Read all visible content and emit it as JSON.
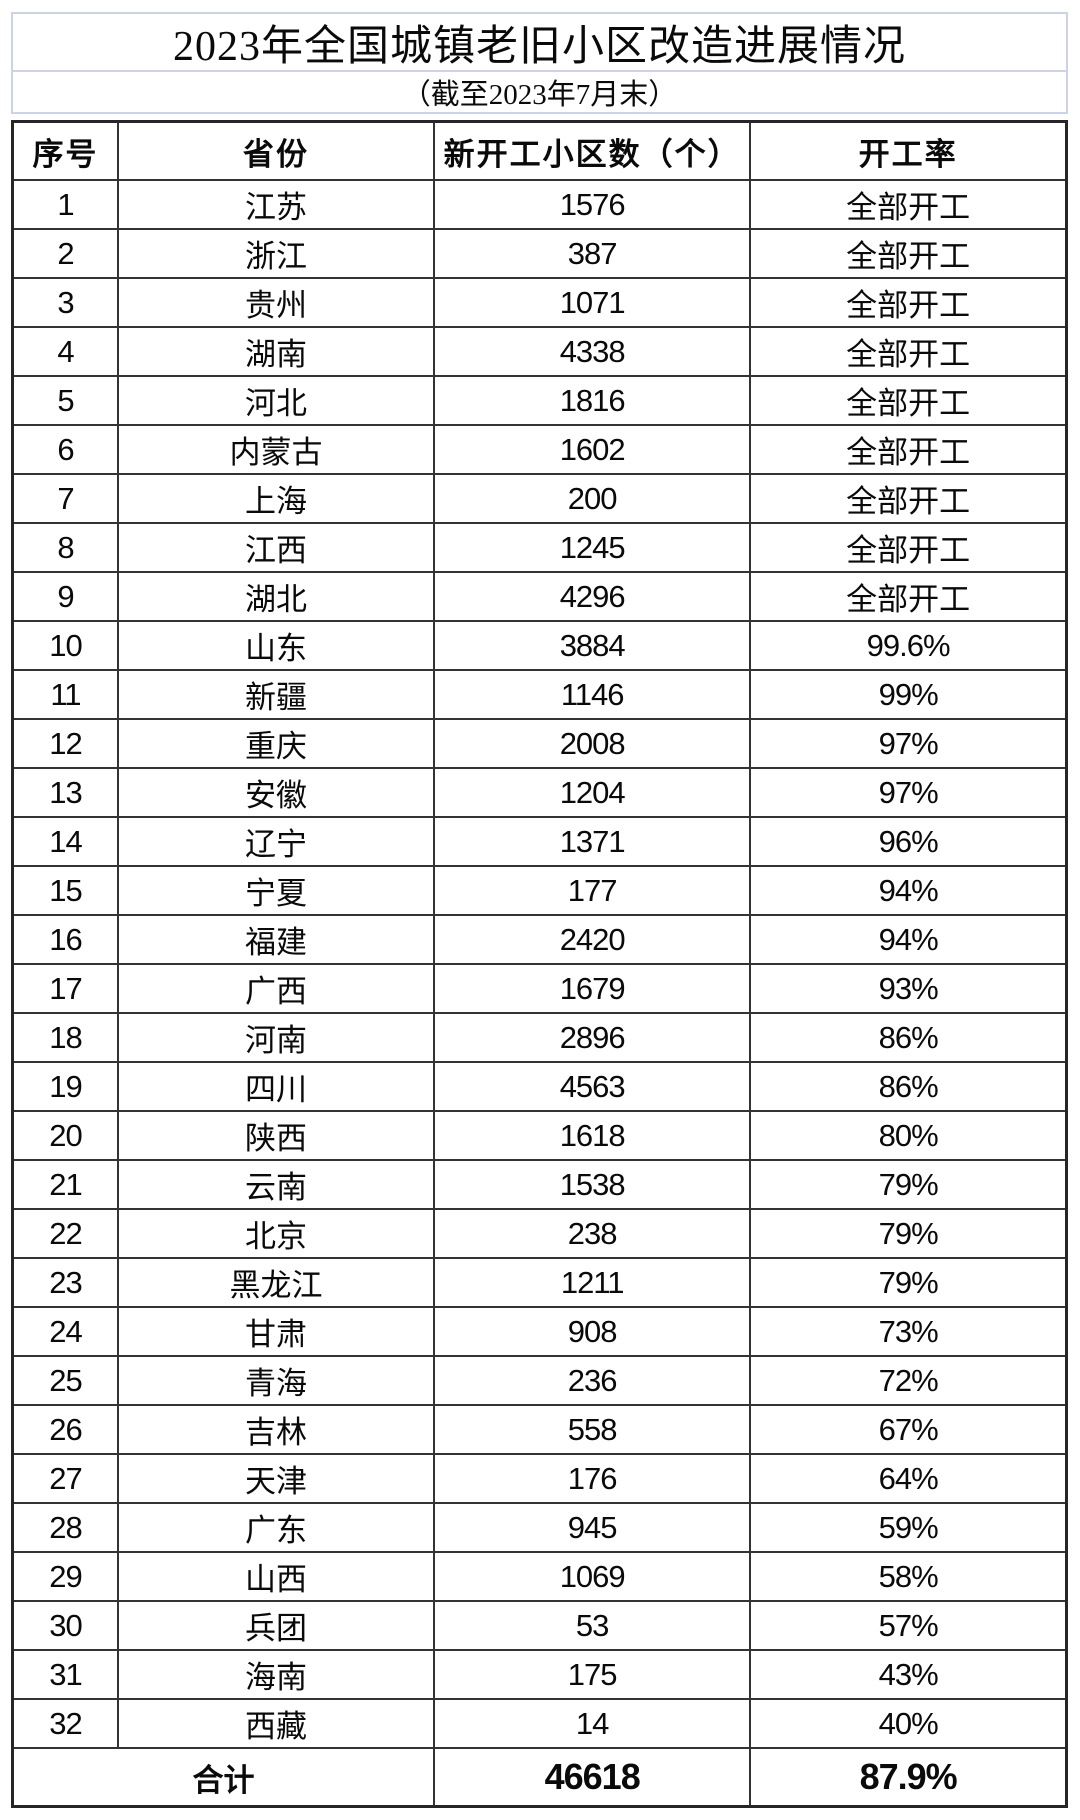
{
  "page": {
    "title": "2023年全国城镇老旧小区改造进展情况",
    "subtitle": "（截至2023年7月末）"
  },
  "table": {
    "headers": [
      "序号",
      "省份",
      "新开工小区数（个）",
      "开工率"
    ],
    "rows": [
      [
        "1",
        "江苏",
        "1576",
        "全部开工"
      ],
      [
        "2",
        "浙江",
        "387",
        "全部开工"
      ],
      [
        "3",
        "贵州",
        "1071",
        "全部开工"
      ],
      [
        "4",
        "湖南",
        "4338",
        "全部开工"
      ],
      [
        "5",
        "河北",
        "1816",
        "全部开工"
      ],
      [
        "6",
        "内蒙古",
        "1602",
        "全部开工"
      ],
      [
        "7",
        "上海",
        "200",
        "全部开工"
      ],
      [
        "8",
        "江西",
        "1245",
        "全部开工"
      ],
      [
        "9",
        "湖北",
        "4296",
        "全部开工"
      ],
      [
        "10",
        "山东",
        "3884",
        "99.6%"
      ],
      [
        "11",
        "新疆",
        "1146",
        "99%"
      ],
      [
        "12",
        "重庆",
        "2008",
        "97%"
      ],
      [
        "13",
        "安徽",
        "1204",
        "97%"
      ],
      [
        "14",
        "辽宁",
        "1371",
        "96%"
      ],
      [
        "15",
        "宁夏",
        "177",
        "94%"
      ],
      [
        "16",
        "福建",
        "2420",
        "94%"
      ],
      [
        "17",
        "广西",
        "1679",
        "93%"
      ],
      [
        "18",
        "河南",
        "2896",
        "86%"
      ],
      [
        "19",
        "四川",
        "4563",
        "86%"
      ],
      [
        "20",
        "陕西",
        "1618",
        "80%"
      ],
      [
        "21",
        "云南",
        "1538",
        "79%"
      ],
      [
        "22",
        "北京",
        "238",
        "79%"
      ],
      [
        "23",
        "黑龙江",
        "1211",
        "79%"
      ],
      [
        "24",
        "甘肃",
        "908",
        "73%"
      ],
      [
        "25",
        "青海",
        "236",
        "72%"
      ],
      [
        "26",
        "吉林",
        "558",
        "67%"
      ],
      [
        "27",
        "天津",
        "176",
        "64%"
      ],
      [
        "28",
        "广东",
        "945",
        "59%"
      ],
      [
        "29",
        "山西",
        "1069",
        "58%"
      ],
      [
        "30",
        "兵团",
        "53",
        "57%"
      ],
      [
        "31",
        "海南",
        "175",
        "43%"
      ],
      [
        "32",
        "西藏",
        "14",
        "40%"
      ]
    ],
    "total": {
      "label": "合计",
      "count": "46618",
      "rate": "87.9%"
    }
  },
  "colors": {
    "border_dark": "#333333",
    "border_light": "#ccd3e5",
    "text": "#0a0a0a"
  }
}
